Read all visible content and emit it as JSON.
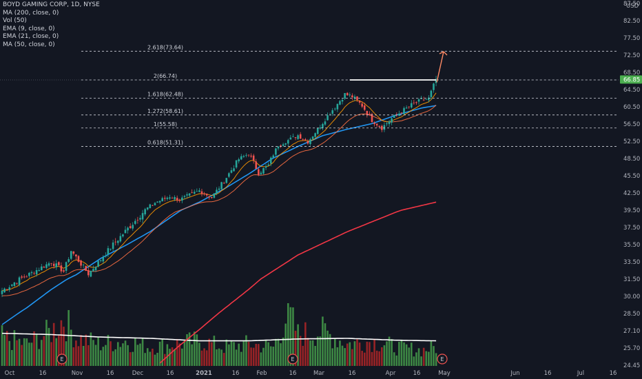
{
  "legend": {
    "symbol": "BOYD GAMING CORP, 1D, NYSE",
    "indicators": [
      "MA (200, close, 0)",
      "Vol (50)",
      "EMA (9, close, 0)",
      "EMA (21, close, 0)",
      "MA (50, close, 0)"
    ]
  },
  "chart_data": {
    "type": "candlestick",
    "price_axis": {
      "currency": "USD",
      "ylim": [
        24.45,
        87.5
      ],
      "tick_labels": [
        "87.50",
        "82.50",
        "77.50",
        "72.50",
        "68.50",
        "64.50",
        "60.50",
        "56.50",
        "52.50",
        "48.50",
        "45.50",
        "42.50",
        "39.50",
        "37.50",
        "35.50",
        "33.50",
        "31.50",
        "30.00",
        "28.50",
        "27.10",
        "25.70",
        "24.45"
      ],
      "scale": "log",
      "last_price": "66.85",
      "last_price_color": "#4caf50"
    },
    "time_axis": {
      "tick_labels": [
        "Oct",
        "16",
        "Nov",
        "16",
        "Dec",
        "16",
        "2021",
        "16",
        "Feb",
        "16",
        "Mar",
        "16",
        "Apr",
        "16",
        "May",
        "Jun",
        "16",
        "Jul",
        "16"
      ]
    },
    "fib_levels": [
      {
        "label": "2.618(73.64)",
        "value": 73.64
      },
      {
        "label": "2(66.74)",
        "value": 66.74
      },
      {
        "label": "1.618(62.48)",
        "value": 62.48
      },
      {
        "label": "1.272(58.61)",
        "value": 58.61
      },
      {
        "label": "1(55.58)",
        "value": 55.58
      },
      {
        "label": "0.618(51.31)",
        "value": 51.31
      }
    ],
    "resistance_level": 66.74,
    "earnings_marker": "E",
    "earnings_markers_count": 3,
    "colors": {
      "up": "#26a69a",
      "down": "#ef5350",
      "ma200": "#f23645",
      "ma50": "#2196f3",
      "ema9": "#ff9800",
      "ema21": "#ff7043",
      "arrow": "#ff8a65",
      "vol_up": "#4caf50",
      "vol_down": "#c62828"
    },
    "series_anchors": {
      "price_close": [
        [
          0,
          30.5
        ],
        [
          10,
          31.9
        ],
        [
          20,
          33.5
        ],
        [
          25,
          32.4
        ],
        [
          28,
          34.8
        ],
        [
          35,
          32.1
        ],
        [
          45,
          35.5
        ],
        [
          55,
          38.6
        ],
        [
          62,
          40.8
        ],
        [
          68,
          41.9
        ],
        [
          72,
          41.3
        ],
        [
          80,
          42.9
        ],
        [
          85,
          41.7
        ],
        [
          90,
          44.6
        ],
        [
          96,
          48.4
        ],
        [
          100,
          49.6
        ],
        [
          104,
          46.0
        ],
        [
          108,
          47.3
        ],
        [
          112,
          51.6
        ],
        [
          120,
          53.9
        ],
        [
          124,
          52.4
        ],
        [
          128,
          55.3
        ],
        [
          132,
          58.4
        ],
        [
          136,
          61.2
        ],
        [
          139,
          63.4
        ],
        [
          142,
          62.9
        ],
        [
          146,
          60.8
        ],
        [
          150,
          57.4
        ],
        [
          154,
          55.6
        ],
        [
          158,
          57.8
        ],
        [
          162,
          59.4
        ],
        [
          166,
          60.9
        ],
        [
          170,
          62.0
        ],
        [
          173,
          62.4
        ],
        [
          176,
          66.9
        ]
      ],
      "ma200": [
        [
          64,
          24.6
        ],
        [
          80,
          27.2
        ],
        [
          100,
          30.6
        ],
        [
          120,
          34.3
        ],
        [
          140,
          37.0
        ],
        [
          160,
          39.3
        ],
        [
          176,
          40.9
        ]
      ],
      "ma50": [
        [
          0,
          27.6
        ],
        [
          10,
          29.0
        ],
        [
          20,
          30.6
        ],
        [
          30,
          32.0
        ],
        [
          40,
          33.9
        ],
        [
          50,
          35.4
        ],
        [
          60,
          37.0
        ],
        [
          70,
          39.0
        ],
        [
          80,
          40.9
        ],
        [
          90,
          43.2
        ],
        [
          100,
          45.8
        ],
        [
          110,
          48.6
        ],
        [
          120,
          51.3
        ],
        [
          130,
          53.8
        ],
        [
          140,
          55.3
        ],
        [
          150,
          56.6
        ],
        [
          160,
          58.6
        ],
        [
          170,
          60.2
        ],
        [
          176,
          60.8
        ]
      ],
      "volume": [
        [
          0,
          0.45
        ],
        [
          10,
          0.35
        ],
        [
          20,
          0.55
        ],
        [
          25,
          0.75
        ],
        [
          30,
          0.45
        ],
        [
          40,
          0.35
        ],
        [
          50,
          0.4
        ],
        [
          60,
          0.3
        ],
        [
          70,
          0.35
        ],
        [
          80,
          0.4
        ],
        [
          90,
          0.3
        ],
        [
          100,
          0.35
        ],
        [
          110,
          0.3
        ],
        [
          116,
          0.85
        ],
        [
          120,
          0.5
        ],
        [
          130,
          0.55
        ],
        [
          140,
          0.35
        ],
        [
          150,
          0.4
        ],
        [
          160,
          0.3
        ],
        [
          170,
          0.25
        ],
        [
          176,
          0.3
        ]
      ],
      "volume_ma": [
        [
          0,
          0.52
        ],
        [
          20,
          0.5
        ],
        [
          40,
          0.46
        ],
        [
          60,
          0.44
        ],
        [
          80,
          0.4
        ],
        [
          100,
          0.4
        ],
        [
          120,
          0.43
        ],
        [
          140,
          0.44
        ],
        [
          160,
          0.41
        ],
        [
          176,
          0.4
        ]
      ]
    }
  }
}
